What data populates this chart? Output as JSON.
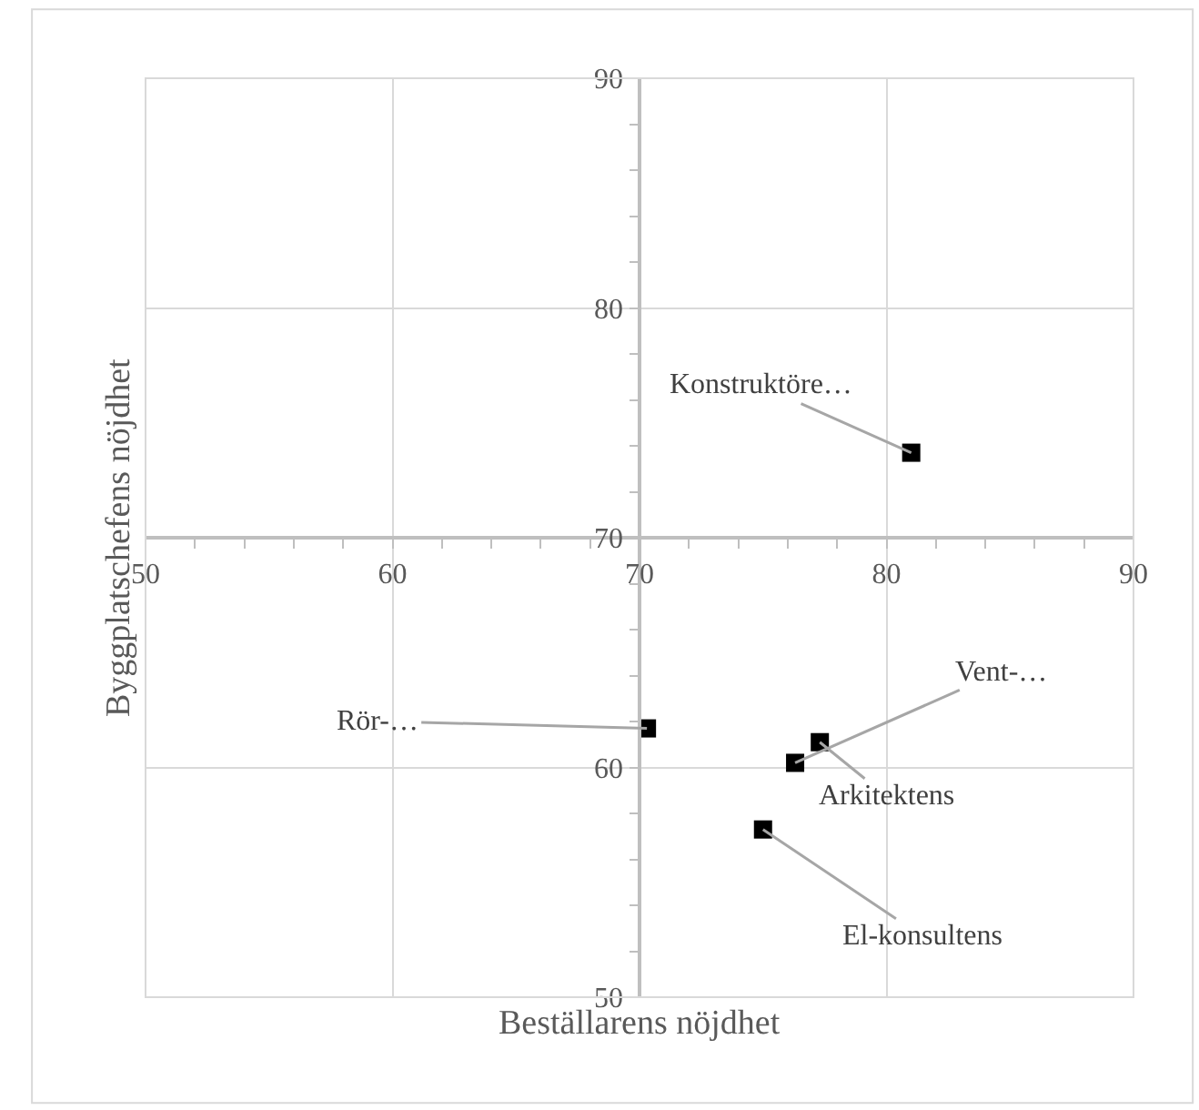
{
  "chart_data": {
    "type": "scatter",
    "xlabel": "Beställarens nöjdhet",
    "ylabel": "Byggplatschefens nöjdhet",
    "x": [
      81.0,
      70.3,
      76.3,
      77.3,
      75.0
    ],
    "series": [
      {
        "color": "#000000",
        "values": [
          73.7,
          61.7,
          60.2,
          61.1,
          57.3
        ]
      }
    ],
    "xlim": [
      50,
      90
    ],
    "ylim": [
      50,
      90
    ],
    "xticks": [
      50,
      60,
      70,
      80,
      90
    ],
    "yticks": [
      50,
      60,
      70,
      80,
      90
    ],
    "grid": true,
    "marker": "square",
    "annotations": [
      {
        "text": "Konstruktöre…",
        "x": 81.0,
        "y": 73.7
      },
      {
        "text": "Rör-…",
        "x": 70.3,
        "y": 61.7
      },
      {
        "text": "Vent-…",
        "x": 76.3,
        "y": 60.2
      },
      {
        "text": "Arkitektens",
        "x": 77.3,
        "y": 61.1
      },
      {
        "text": "El-konsultens",
        "x": 75.0,
        "y": 57.3
      }
    ]
  }
}
